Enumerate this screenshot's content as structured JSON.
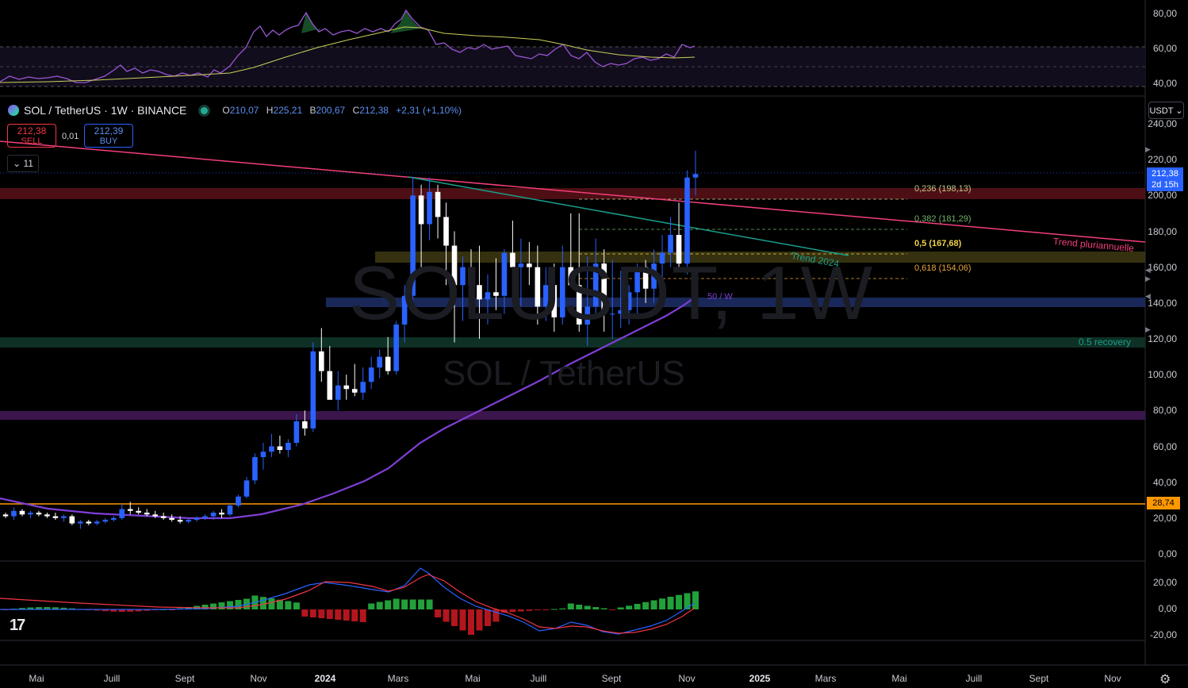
{
  "symbol": {
    "title": "SOL / TetherUS · 1W · BINANCE",
    "watermark": "SOLUSDT, 1W",
    "watermark_sub": "SOL / TetherUS"
  },
  "ohlc": {
    "o_label": "O",
    "o": "210,07",
    "h_label": "H",
    "h": "225,21",
    "l_label": "B",
    "l": "200,67",
    "c_label": "C",
    "c": "212,38",
    "change": "+2,31 (+1,10%)"
  },
  "trade": {
    "sell_price": "212,38",
    "sell_label": "SELL",
    "spread": "0,01",
    "buy_price": "212,39",
    "buy_label": "BUY"
  },
  "indicators_collapse": "11",
  "currency": "USDT",
  "last_price": {
    "price": "212,38",
    "countdown": "2d 15h"
  },
  "support_tag": "28,74",
  "fib_levels": [
    {
      "label": "0,236 (198,13)",
      "color": "#c5c98a"
    },
    {
      "label": "0,382 (181,29)",
      "color": "#72b36a"
    },
    {
      "label": "0,5 (167,68)",
      "color": "#f0d24a"
    },
    {
      "label": "0,618 (154,06)",
      "color": "#e8a33c"
    }
  ],
  "annotations": {
    "trend_multi": "Trend pluriannuelle",
    "trend_2024": "Trend 2024",
    "ma_label": "50 / W",
    "recovery": "0.5 recovery"
  },
  "price_axis": [
    "240,00",
    "220,00",
    "200,00",
    "180,00",
    "160,00",
    "140,00",
    "120,00",
    "100,00",
    "80,00",
    "60,00",
    "40,00",
    "20,00",
    "0,00"
  ],
  "rsi_axis": [
    "80,00",
    "60,00",
    "40,00"
  ],
  "macd_axis": [
    "20,00",
    "0,00",
    "-20,00"
  ],
  "time_axis": [
    "Mai",
    "Juill",
    "Sept",
    "Nov",
    "2024",
    "Mars",
    "Mai",
    "Juill",
    "Sept",
    "Nov",
    "2025",
    "Mars",
    "Mai",
    "Juill",
    "Sept",
    "Nov"
  ],
  "colors": {
    "up": "#2962ff",
    "down": "#ffffff",
    "trend_multi": "#f23f7a",
    "trend_2024": "#1a9e8a",
    "ma": "#7e3fd6",
    "support": "#ff9800",
    "rsi": "#9a56d6",
    "rsi_ma": "#c9d05a"
  },
  "icons": {
    "symbol": "sol-logo-icon",
    "status": "market-open-dot-icon",
    "collapse": "chevron-down-icon",
    "settings": "gear-icon",
    "logo": "tradingview-logo-icon"
  },
  "chart_data": {
    "type": "candlestick",
    "timeframe": "1W",
    "ylim": [
      0,
      240
    ],
    "last": {
      "open": 210.07,
      "high": 225.21,
      "low": 200.67,
      "close": 212.38
    },
    "horizontal_levels": [
      28.74,
      140,
      120,
      78,
      199
    ],
    "fibonacci": [
      {
        "ratio": 0.236,
        "price": 198.13
      },
      {
        "ratio": 0.382,
        "price": 181.29
      },
      {
        "ratio": 0.5,
        "price": 167.68
      },
      {
        "ratio": 0.618,
        "price": 154.06
      }
    ],
    "candles": [
      [
        22,
        23,
        20,
        21
      ],
      [
        21,
        26,
        19,
        24
      ],
      [
        24,
        25,
        21,
        22
      ],
      [
        22,
        24,
        20,
        23
      ],
      [
        23,
        24,
        21,
        22
      ],
      [
        22,
        23,
        20,
        21
      ],
      [
        21,
        23,
        19,
        20
      ],
      [
        20,
        22,
        18,
        21
      ],
      [
        21,
        22,
        16,
        17
      ],
      [
        17,
        19,
        14,
        18
      ],
      [
        18,
        19,
        16,
        17
      ],
      [
        17,
        19,
        16,
        18
      ],
      [
        18,
        20,
        17,
        19
      ],
      [
        19,
        21,
        18,
        20
      ],
      [
        20,
        28,
        19,
        25
      ],
      [
        25,
        29,
        22,
        24
      ],
      [
        24,
        26,
        22,
        23
      ],
      [
        23,
        25,
        21,
        22
      ],
      [
        22,
        24,
        20,
        21
      ],
      [
        21,
        23,
        19,
        20
      ],
      [
        20,
        22,
        18,
        19
      ],
      [
        19,
        21,
        17,
        18
      ],
      [
        18,
        20,
        17,
        19
      ],
      [
        19,
        21,
        18,
        20
      ],
      [
        20,
        22,
        19,
        21
      ],
      [
        21,
        24,
        19,
        23
      ],
      [
        23,
        25,
        20,
        22
      ],
      [
        22,
        28,
        21,
        27
      ],
      [
        27,
        33,
        26,
        32
      ],
      [
        32,
        43,
        31,
        41
      ],
      [
        41,
        56,
        39,
        54
      ],
      [
        54,
        62,
        47,
        57
      ],
      [
        57,
        67,
        54,
        60
      ],
      [
        60,
        66,
        56,
        58
      ],
      [
        58,
        64,
        54,
        62
      ],
      [
        62,
        78,
        60,
        74
      ],
      [
        74,
        80,
        66,
        70
      ],
      [
        70,
        118,
        68,
        113
      ],
      [
        113,
        126,
        96,
        102
      ],
      [
        102,
        116,
        88,
        86
      ],
      [
        86,
        102,
        80,
        94
      ],
      [
        94,
        100,
        86,
        92
      ],
      [
        92,
        106,
        88,
        90
      ],
      [
        90,
        104,
        86,
        96
      ],
      [
        96,
        110,
        92,
        104
      ],
      [
        104,
        114,
        98,
        110
      ],
      [
        110,
        121,
        100,
        102
      ],
      [
        102,
        130,
        100,
        128
      ],
      [
        128,
        150,
        118,
        144
      ],
      [
        144,
        210,
        138,
        200
      ],
      [
        200,
        206,
        160,
        184
      ],
      [
        184,
        210,
        175,
        202
      ],
      [
        202,
        206,
        176,
        188
      ],
      [
        188,
        196,
        150,
        172
      ],
      [
        172,
        180,
        118,
        150
      ],
      [
        150,
        166,
        130,
        160
      ],
      [
        160,
        170,
        140,
        150
      ],
      [
        150,
        172,
        120,
        142
      ],
      [
        142,
        156,
        128,
        146
      ],
      [
        146,
        165,
        136,
        144
      ],
      [
        144,
        170,
        134,
        168
      ],
      [
        168,
        186,
        160,
        160
      ],
      [
        160,
        176,
        138,
        162
      ],
      [
        162,
        174,
        150,
        160
      ],
      [
        160,
        172,
        128,
        138
      ],
      [
        138,
        160,
        130,
        150
      ],
      [
        150,
        162,
        124,
        132
      ],
      [
        132,
        172,
        128,
        160
      ],
      [
        160,
        190,
        152,
        150
      ],
      [
        150,
        190,
        124,
        128
      ],
      [
        128,
        166,
        116,
        138
      ],
      [
        138,
        176,
        132,
        162
      ],
      [
        162,
        170,
        124,
        134
      ],
      [
        134,
        164,
        120,
        134
      ],
      [
        134,
        158,
        126,
        136
      ],
      [
        136,
        150,
        128,
        146
      ],
      [
        146,
        162,
        132,
        160
      ],
      [
        160,
        164,
        140,
        148
      ],
      [
        148,
        170,
        140,
        162
      ],
      [
        162,
        178,
        150,
        168
      ],
      [
        168,
        188,
        160,
        178
      ],
      [
        178,
        196,
        160,
        162
      ],
      [
        162,
        214,
        156,
        210
      ],
      [
        210,
        225,
        200,
        212
      ]
    ]
  }
}
